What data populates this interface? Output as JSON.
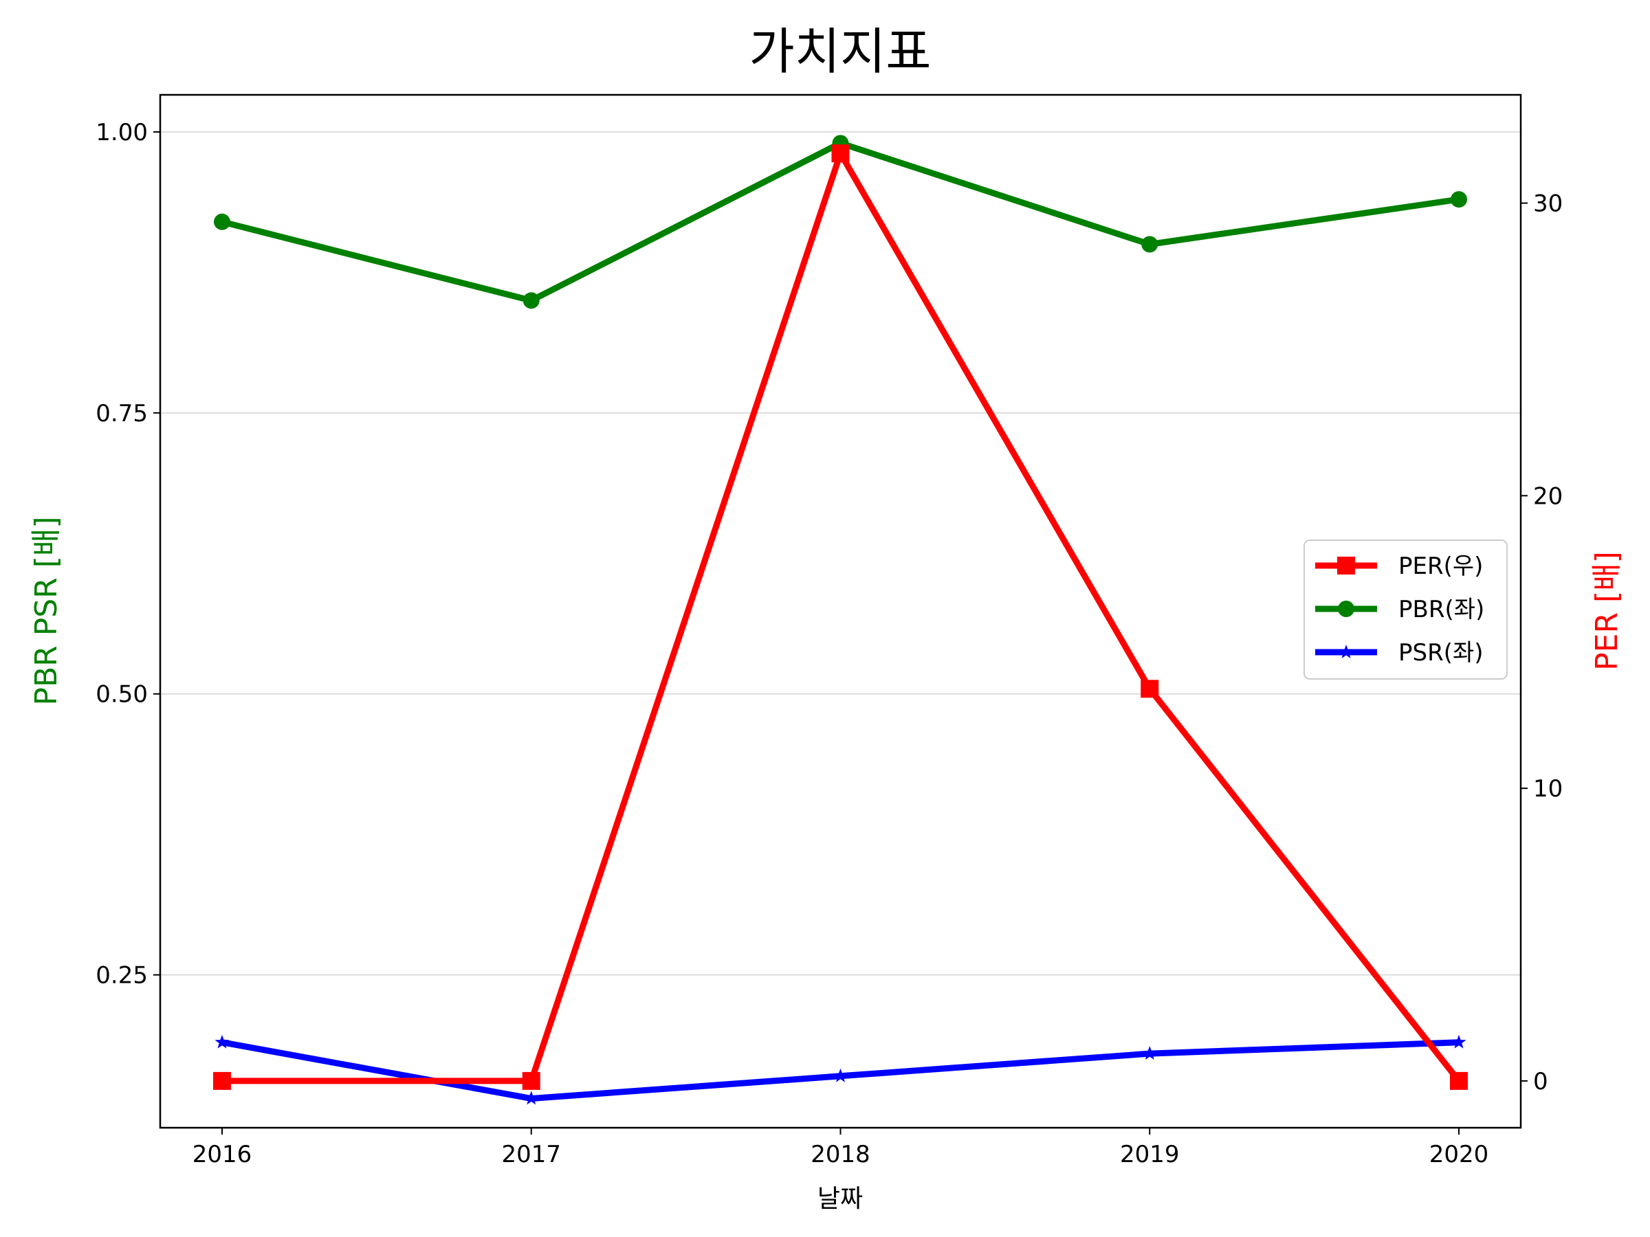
{
  "chart_data": {
    "type": "line",
    "title": "가치지표",
    "xlabel": "날짜",
    "ylabel_left": "PBR PSR [배]",
    "ylabel_right": "PER [배]",
    "categories": [
      "2016",
      "2017",
      "2018",
      "2019",
      "2020"
    ],
    "left_axis": {
      "ylim": [
        0.114,
        1.033
      ],
      "ticks": [
        0.25,
        0.5,
        0.75,
        1.0
      ],
      "tick_labels": [
        "0.25",
        "0.50",
        "0.75",
        "1.00"
      ],
      "grid": true
    },
    "right_axis": {
      "ylim": [
        -1.6,
        33.7
      ],
      "ticks": [
        0,
        10,
        20,
        30
      ],
      "tick_labels": [
        "0",
        "10",
        "20",
        "30"
      ]
    },
    "series": [
      {
        "name": "PER(우)",
        "axis": "right",
        "color": "#ff0000",
        "marker": "square",
        "values": [
          0,
          0,
          31.7,
          13.4,
          0
        ]
      },
      {
        "name": "PBR(좌)",
        "axis": "left",
        "color": "#008000",
        "marker": "circle",
        "values": [
          0.92,
          0.85,
          0.99,
          0.9,
          0.94
        ]
      },
      {
        "name": "PSR(좌)",
        "axis": "left",
        "color": "#0000ff",
        "marker": "star",
        "values": [
          0.19,
          0.14,
          0.16,
          0.18,
          0.19
        ]
      }
    ],
    "legend_position": "center-right"
  }
}
